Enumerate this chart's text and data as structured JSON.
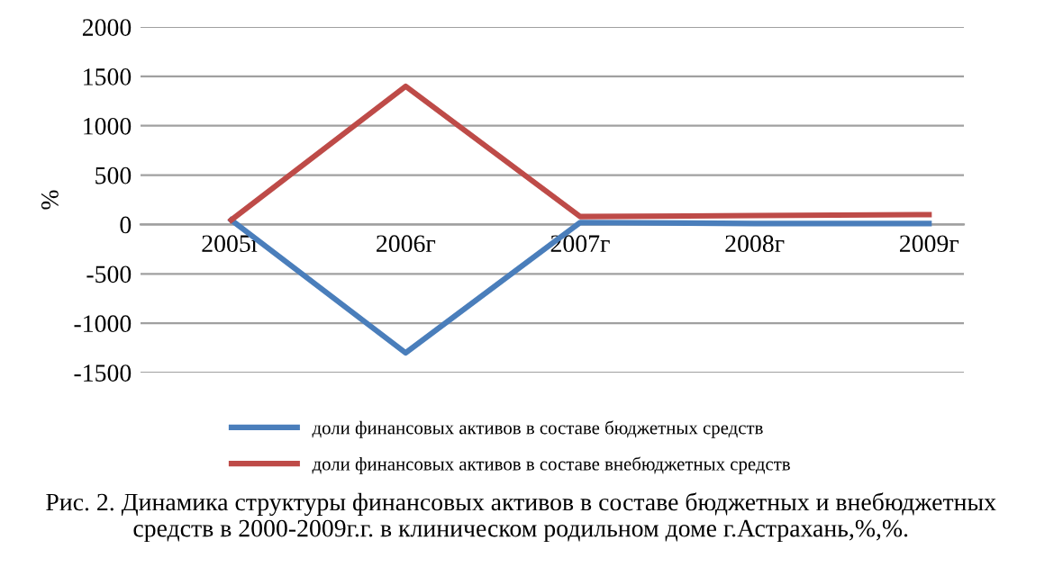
{
  "chart_data": {
    "type": "line",
    "ylabel": "%",
    "categories": [
      "2005г",
      "2006г",
      "2007г",
      "2008г",
      "2009г"
    ],
    "series": [
      {
        "name": "доли финансовых активов в составе бюджетных средств",
        "color": "#4a7ebb",
        "values": [
          45,
          -1300,
          20,
          10,
          10
        ]
      },
      {
        "name": "доли финансовых активов в составе внебюджетных средств",
        "color": "#be4b48",
        "values": [
          45,
          1400,
          80,
          90,
          100
        ]
      }
    ],
    "ylim": [
      -1500,
      2000
    ],
    "yticks": [
      -1500,
      -1000,
      -500,
      0,
      500,
      1000,
      1500,
      2000
    ],
    "grid": "y",
    "legend": "bottom",
    "marker": "none",
    "line_style": "solid",
    "annotations": [
      "Рис. 2. Динамика структуры финансовых активов в составе бюджетных и внебюджетных средств в 2000-2009г.г. в клиническом родильном доме г.Астрахань,%,%."
    ]
  }
}
